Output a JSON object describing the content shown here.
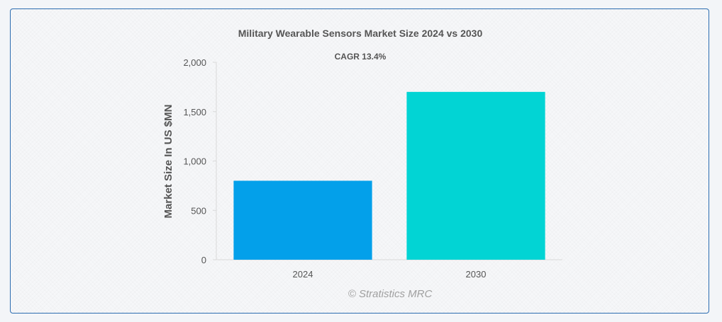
{
  "chart_data": {
    "type": "bar",
    "title": "Military Wearable Sensors Market Size 2024 vs 2030",
    "subtitle": "CAGR 13.4%",
    "ylabel": "Market Size In US $MN",
    "xlabel": "",
    "categories": [
      "2024",
      "2030"
    ],
    "values": [
      800,
      1700
    ],
    "colors": [
      "#03a0ea",
      "#02d4d4"
    ],
    "ylim": [
      0,
      2000
    ],
    "yticks": [
      0,
      500,
      1000,
      1500,
      2000
    ],
    "ytick_labels": [
      "0",
      "500",
      "1,000",
      "1,500",
      "2,000"
    ],
    "grid": false,
    "legend": "none"
  },
  "credit": "© Stratistics MRC"
}
